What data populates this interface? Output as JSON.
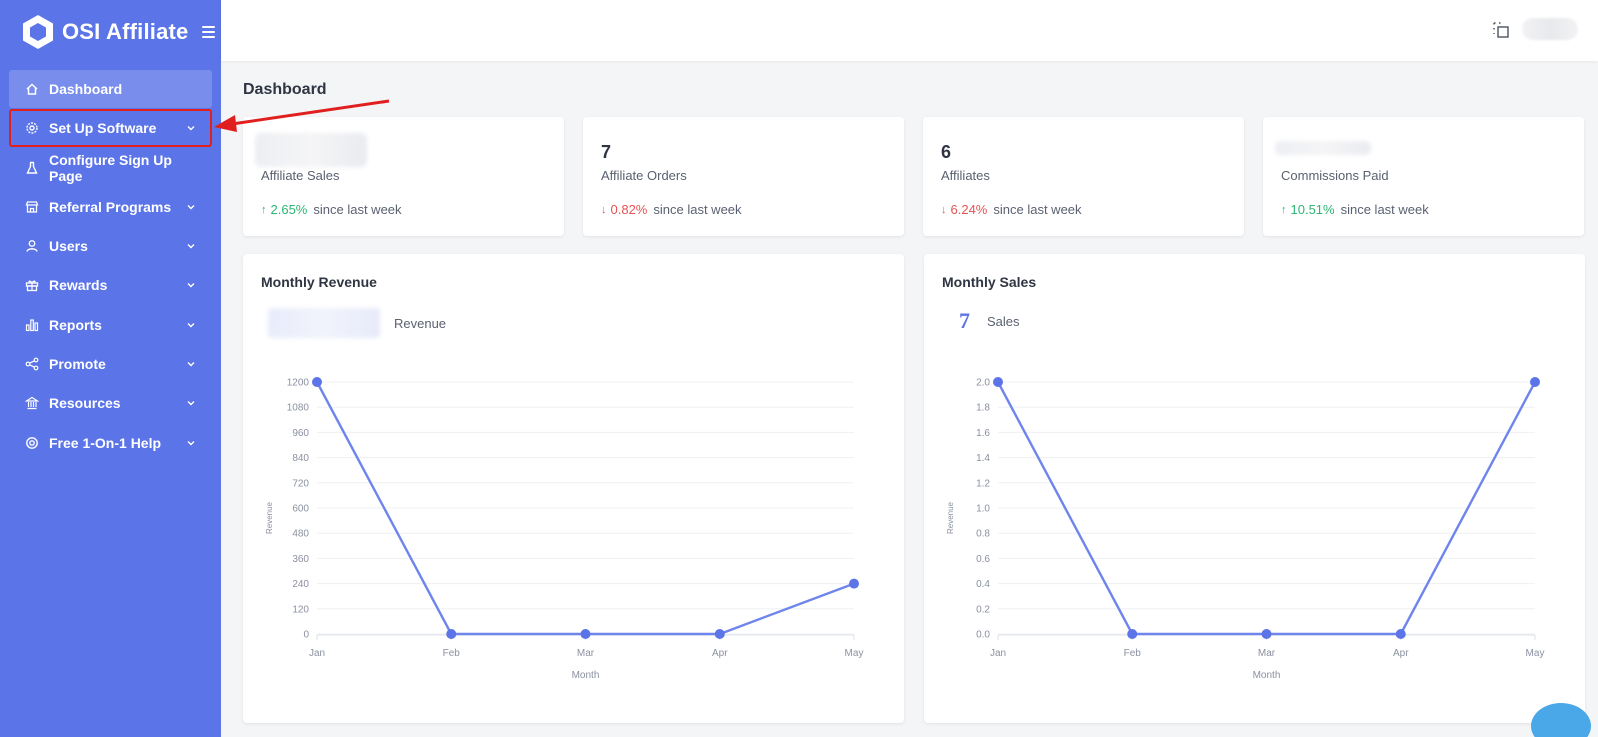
{
  "app": {
    "name": "OSI Affiliate"
  },
  "sidebar": {
    "items": [
      {
        "label": "Dashboard",
        "icon": "home-icon",
        "chevron": false,
        "active": true
      },
      {
        "label": "Set Up Software",
        "icon": "gear-icon",
        "chevron": true,
        "highlight": true
      },
      {
        "label": "Configure Sign Up Page",
        "icon": "flask-icon",
        "chevron": false
      },
      {
        "label": "Referral Programs",
        "icon": "store-icon",
        "chevron": true
      },
      {
        "label": "Users",
        "icon": "user-icon",
        "chevron": true
      },
      {
        "label": "Rewards",
        "icon": "gift-icon",
        "chevron": true
      },
      {
        "label": "Reports",
        "icon": "bar-chart-icon",
        "chevron": true
      },
      {
        "label": "Promote",
        "icon": "share-icon",
        "chevron": true
      },
      {
        "label": "Resources",
        "icon": "bank-icon",
        "chevron": true
      },
      {
        "label": "Free 1-On-1 Help",
        "icon": "lifebuoy-icon",
        "chevron": true
      }
    ]
  },
  "page": {
    "title": "Dashboard"
  },
  "stats": [
    {
      "value": "",
      "label": "Affiliate Sales",
      "change": "2.65%",
      "direction": "up",
      "suffix": "since last week"
    },
    {
      "value": "7",
      "label": "Affiliate Orders",
      "change": "0.82%",
      "direction": "down",
      "suffix": "since last week"
    },
    {
      "value": "6",
      "label": "Affiliates",
      "change": "6.24%",
      "direction": "down",
      "suffix": "since last week"
    },
    {
      "value": "",
      "label": "Commissions Paid",
      "change": "10.51%",
      "direction": "up",
      "suffix": "since last week"
    }
  ],
  "colors": {
    "accent": "#5b74e8",
    "up": "#2cb673",
    "down": "#e55353",
    "annotation": "#e0201f"
  },
  "charts": {
    "revenue": {
      "title": "Monthly Revenue",
      "summary_value": "",
      "summary_label": "Revenue"
    },
    "sales": {
      "title": "Monthly Sales",
      "summary_value": "7",
      "summary_label": "Sales"
    }
  },
  "chart_data": [
    {
      "type": "line",
      "title": "Monthly Revenue",
      "x": [
        "Jan",
        "Feb",
        "Mar",
        "Apr",
        "May"
      ],
      "series": [
        {
          "values": [
            1200,
            0,
            0,
            0,
            240
          ]
        }
      ],
      "xlabel": "Month",
      "ylabel": "Revenue",
      "ylim": [
        0,
        1200
      ],
      "yticks": [
        "0",
        "120",
        "240",
        "360",
        "480",
        "600",
        "720",
        "840",
        "960",
        "1080",
        "1200"
      ],
      "grid": true
    },
    {
      "type": "line",
      "title": "Monthly Sales",
      "x": [
        "Jan",
        "Feb",
        "Mar",
        "Apr",
        "May"
      ],
      "series": [
        {
          "values": [
            2,
            0,
            0,
            0,
            2
          ]
        }
      ],
      "xlabel": "Month",
      "ylabel": "Revenue",
      "ylim": [
        0,
        2
      ],
      "yticks": [
        "0.0",
        "0.2",
        "0.4",
        "0.6",
        "0.8",
        "1.0",
        "1.2",
        "1.4",
        "1.6",
        "1.8",
        "2.0"
      ],
      "grid": true
    }
  ]
}
